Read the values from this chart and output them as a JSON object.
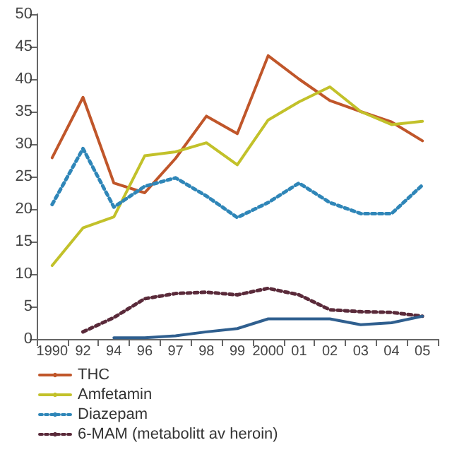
{
  "chart_data": {
    "type": "line",
    "categories": [
      "1990",
      "92",
      "94",
      "96",
      "97",
      "98",
      "99",
      "2000",
      "01",
      "02",
      "03",
      "04",
      "05"
    ],
    "series": [
      {
        "name": "THC",
        "color": "#c0562a",
        "values": [
          27.9,
          37.2,
          24,
          22.5,
          27.8,
          34.3,
          31.6,
          43.6,
          40,
          36.7,
          35,
          33.4,
          30.5
        ]
      },
      {
        "name": "Amfetamin",
        "color": "#c2c12a",
        "values": [
          11.3,
          17.1,
          18.8,
          28.2,
          28.8,
          30.2,
          26.8,
          33.7,
          36.5,
          38.8,
          35,
          33,
          33.5
        ]
      },
      {
        "name": "Diazepam",
        "color": "#2f86b8",
        "line_style": "dotted",
        "values": [
          20.7,
          29.3,
          20.3,
          23.5,
          24.8,
          22,
          18.7,
          21,
          24,
          21,
          19.3,
          19.3,
          23.7
        ]
      },
      {
        "name": "6-MAM (metabolitt av heroin)",
        "color": "#5a2a3a",
        "line_style": "dotted",
        "values": [
          null,
          1.1,
          3.3,
          6.2,
          7,
          7.2,
          6.8,
          7.8,
          6.8,
          4.5,
          4.2,
          4.1,
          3.5
        ]
      },
      {
        "color": "#2f5f8f",
        "values": [
          null,
          null,
          0.2,
          0.2,
          0.5,
          1.1,
          1.6,
          3.1,
          3.1,
          3.1,
          2.2,
          2.5,
          3.5
        ]
      }
    ],
    "ylim": [
      0,
      50
    ],
    "yticks": [
      0,
      5,
      10,
      15,
      20,
      25,
      30,
      35,
      40,
      45,
      50
    ],
    "grid": false,
    "legend": "bottom",
    "marker": "none",
    "line_style": "solid"
  }
}
